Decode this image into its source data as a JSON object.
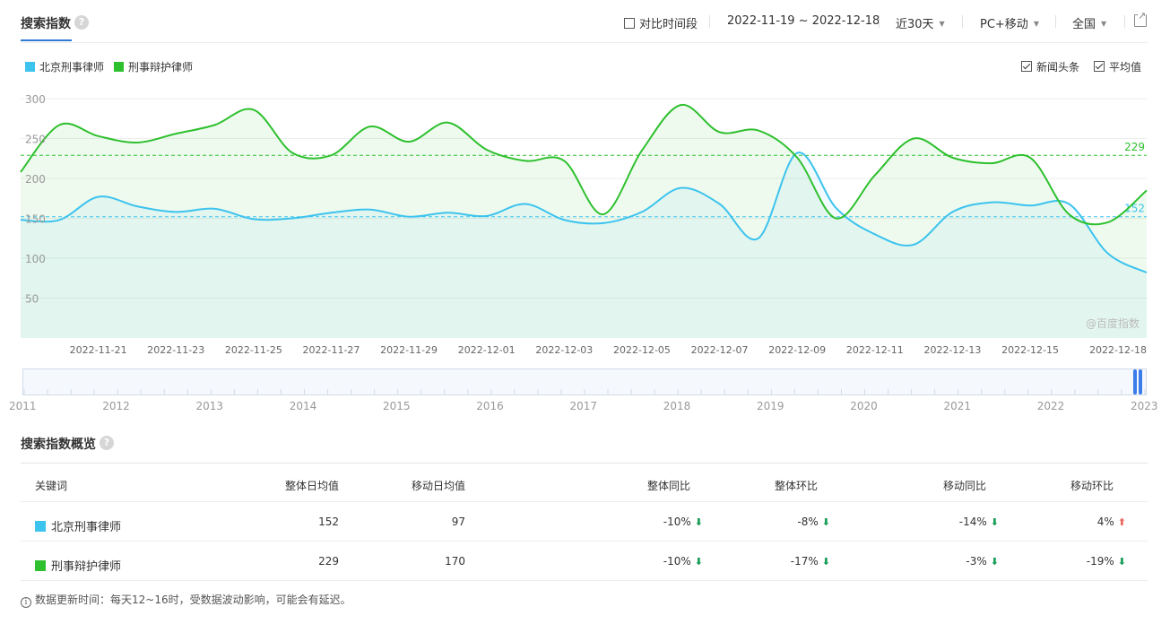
{
  "header": {
    "title": "搜索指数",
    "help": "?",
    "compare_label": "对比时间段",
    "date_range": "2022-11-19 ~ 2022-12-18",
    "period": "近30天",
    "device": "PC+移动",
    "region": "全国"
  },
  "legend": [
    {
      "name": "北京刑事律师",
      "color": "#3cc3ee"
    },
    {
      "name": "刑事辩护律师",
      "color": "#2ec02e"
    }
  ],
  "options": {
    "news_label": "新闻头条",
    "avg_label": "平均值"
  },
  "chart_data": {
    "type": "area",
    "watermark": "@百度指数",
    "ylim": [
      0,
      300
    ],
    "yticks": [
      "300",
      "250",
      "200",
      "150",
      "100",
      "50"
    ],
    "x": [
      "2022-11-19",
      "2022-11-20",
      "2022-11-21",
      "2022-11-22",
      "2022-11-23",
      "2022-11-24",
      "2022-11-25",
      "2022-11-26",
      "2022-11-27",
      "2022-11-28",
      "2022-11-29",
      "2022-11-30",
      "2022-12-01",
      "2022-12-02",
      "2022-12-03",
      "2022-12-04",
      "2022-12-05",
      "2022-12-06",
      "2022-12-07",
      "2022-12-08",
      "2022-12-09",
      "2022-12-10",
      "2022-12-11",
      "2022-12-12",
      "2022-12-13",
      "2022-12-14",
      "2022-12-15",
      "2022-12-16",
      "2022-12-17",
      "2022-12-18"
    ],
    "xtick_labels": [
      "2022-11-21",
      "2022-11-23",
      "2022-11-25",
      "2022-11-27",
      "2022-11-29",
      "2022-12-01",
      "2022-12-03",
      "2022-12-05",
      "2022-12-07",
      "2022-12-09",
      "2022-12-11",
      "2022-12-13",
      "2022-12-15",
      "2022-12-18"
    ],
    "series": [
      {
        "name": "北京刑事律师",
        "color": "#3cc3ee",
        "avg": 152,
        "avg_label": "152",
        "values": [
          148,
          148,
          177,
          165,
          158,
          162,
          149,
          150,
          157,
          161,
          152,
          157,
          153,
          168,
          148,
          144,
          158,
          188,
          168,
          125,
          232,
          163,
          130,
          117,
          158,
          170,
          166,
          168,
          106,
          82
        ]
      },
      {
        "name": "刑事辩护律师",
        "color": "#2ec02e",
        "avg": 229,
        "avg_label": "229",
        "values": [
          208,
          267,
          253,
          245,
          256,
          267,
          286,
          232,
          229,
          265,
          246,
          270,
          236,
          222,
          222,
          155,
          235,
          292,
          258,
          260,
          226,
          150,
          204,
          250,
          226,
          219,
          226,
          155,
          145,
          185
        ]
      }
    ]
  },
  "year_axis": [
    "2011",
    "2012",
    "2013",
    "2014",
    "2015",
    "2016",
    "2017",
    "2018",
    "2019",
    "2020",
    "2021",
    "2022",
    "2023"
  ],
  "overview": {
    "title": "搜索指数概览",
    "columns": {
      "keyword": "关键词",
      "overall_avg": "整体日均值",
      "mobile_avg": "移动日均值",
      "overall_yoy": "整体同比",
      "overall_mom": "整体环比",
      "mobile_yoy": "移动同比",
      "mobile_mom": "移动环比"
    },
    "rows": [
      {
        "keyword": "北京刑事律师",
        "color": "#3cc3ee",
        "overall_avg": "152",
        "mobile_avg": "97",
        "overall_yoy": "-10%",
        "overall_yoy_dir": "down",
        "overall_mom": "-8%",
        "overall_mom_dir": "down",
        "mobile_yoy": "-14%",
        "mobile_yoy_dir": "down",
        "mobile_mom": "4%",
        "mobile_mom_dir": "up"
      },
      {
        "keyword": "刑事辩护律师",
        "color": "#2ec02e",
        "overall_avg": "229",
        "mobile_avg": "170",
        "overall_yoy": "-10%",
        "overall_yoy_dir": "down",
        "overall_mom": "-17%",
        "overall_mom_dir": "down",
        "mobile_yoy": "-3%",
        "mobile_yoy_dir": "down",
        "mobile_mom": "-19%",
        "mobile_mom_dir": "down"
      }
    ]
  },
  "note": "数据更新时间：每天12~16时，受数据波动影响，可能会有延迟。"
}
